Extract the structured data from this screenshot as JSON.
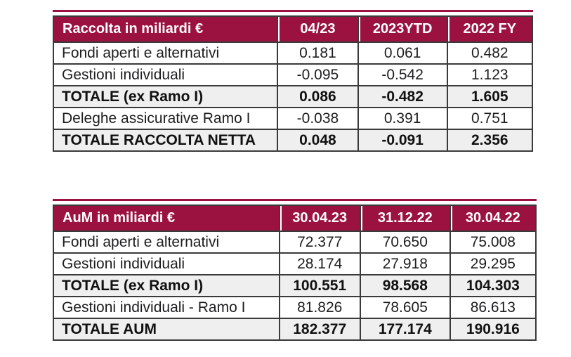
{
  "colors": {
    "header_bg": "#9B1140",
    "header_text": "#ffffff",
    "total_row_bg": "#EFEFEF",
    "border": "#3a3a3a",
    "body_text": "#1d1d1f"
  },
  "chart_data": [
    {
      "type": "table",
      "title": "Raccolta in miliardi €",
      "columns": [
        "04/23",
        "2023YTD",
        "2022 FY"
      ],
      "rows": [
        {
          "label": "Fondi aperti e alternativi",
          "total": false,
          "values": [
            "0.181",
            "0.061",
            "0.482"
          ]
        },
        {
          "label": "Gestioni individuali",
          "total": false,
          "values": [
            "-0.095",
            "-0.542",
            "1.123"
          ]
        },
        {
          "label": "TOTALE (ex Ramo I)",
          "total": true,
          "values": [
            "0.086",
            "-0.482",
            "1.605"
          ]
        },
        {
          "label": "Deleghe assicurative Ramo I",
          "total": false,
          "values": [
            "-0.038",
            "0.391",
            "0.751"
          ]
        },
        {
          "label": "TOTALE RACCOLTA NETTA",
          "total": true,
          "values": [
            "0.048",
            "-0.091",
            "2.356"
          ]
        }
      ]
    },
    {
      "type": "table",
      "title": "AuM in miliardi €",
      "columns": [
        "30.04.23",
        "31.12.22",
        "30.04.22"
      ],
      "rows": [
        {
          "label": "Fondi aperti e alternativi",
          "total": false,
          "values": [
            "72.377",
            "70.650",
            "75.008"
          ]
        },
        {
          "label": "Gestioni individuali",
          "total": false,
          "values": [
            "28.174",
            "27.918",
            "29.295"
          ]
        },
        {
          "label": "TOTALE (ex Ramo I)",
          "total": true,
          "values": [
            "100.551",
            "98.568",
            "104.303"
          ]
        },
        {
          "label": "Gestioni individuali - Ramo I",
          "total": false,
          "values": [
            "81.826",
            "78.605",
            "86.613"
          ]
        },
        {
          "label": "TOTALE AUM",
          "total": true,
          "values": [
            "182.377",
            "177.174",
            "190.916"
          ]
        }
      ]
    }
  ]
}
